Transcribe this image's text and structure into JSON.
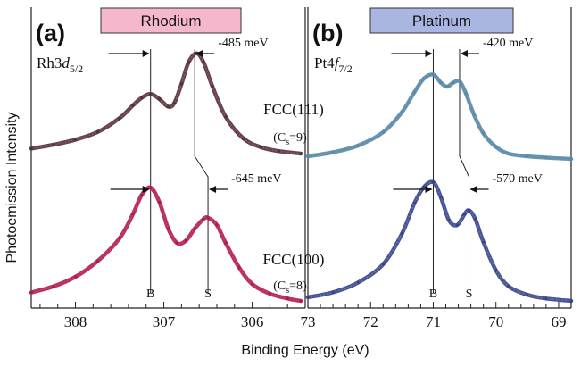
{
  "chart_data": [
    {
      "panel": "(a)",
      "element": "Rhodium",
      "banner_color": "#f4b7cc",
      "line_color": "#3a2a2e",
      "marker_color": "#cc4466",
      "core_level": {
        "main": "Rh3",
        "italic": "d",
        "sub": "5/2"
      },
      "xlim": [
        308.5,
        305.4
      ],
      "x_reversed": true,
      "xticks": [
        308,
        307,
        306
      ],
      "bulk_line_x": 307.15,
      "surface_line_x_top": 306.65,
      "surface_line_x_bottom": 306.5,
      "bulk_label": "B",
      "surface_label": "S",
      "series": [
        {
          "name": "FCC(111)",
          "coordination": "=9",
          "shift": "-485 meV",
          "color": "#4a3438",
          "peaks": [
            {
              "center": 307.15,
              "height": 0.43,
              "width": 0.16
            },
            {
              "center": 306.63,
              "height": 0.77,
              "width": 0.17
            }
          ],
          "baseline_left": 0.04,
          "baseline_right": 0.0,
          "x": [
            308.5,
            308.25,
            308.0,
            307.75,
            307.5,
            307.35,
            307.25,
            307.15,
            307.05,
            306.95,
            306.88,
            306.8,
            306.72,
            306.63,
            306.55,
            306.45,
            306.3,
            306.1,
            305.9,
            305.7,
            305.45
          ],
          "y": [
            0.04,
            0.07,
            0.11,
            0.17,
            0.28,
            0.38,
            0.44,
            0.47,
            0.43,
            0.37,
            0.4,
            0.55,
            0.72,
            0.79,
            0.72,
            0.53,
            0.29,
            0.12,
            0.05,
            0.02,
            0.0
          ]
        },
        {
          "name": "FCC(100)",
          "coordination": "=8",
          "shift": "-645 meV",
          "color": "#b01a4a",
          "x": [
            308.5,
            308.25,
            308.0,
            307.75,
            307.5,
            307.35,
            307.25,
            307.15,
            307.05,
            306.95,
            306.85,
            306.75,
            306.65,
            306.55,
            306.5,
            306.4,
            306.3,
            306.15,
            306.0,
            305.8,
            305.6,
            305.45
          ],
          "y": [
            0.07,
            0.12,
            0.2,
            0.33,
            0.52,
            0.72,
            0.88,
            0.94,
            0.82,
            0.6,
            0.48,
            0.5,
            0.6,
            0.68,
            0.69,
            0.63,
            0.48,
            0.28,
            0.14,
            0.06,
            0.02,
            0.0
          ]
        }
      ]
    },
    {
      "panel": "(b)",
      "element": "Platinum",
      "banner_color": "#aab6e2",
      "line_color": "#2a3a45",
      "marker_color": "#5a8aa8",
      "core_level": {
        "main": "Pt4",
        "italic": "f",
        "sub": "7/2"
      },
      "xlim": [
        73,
        68.8
      ],
      "x_reversed": true,
      "xticks": [
        73,
        72,
        71,
        70,
        69
      ],
      "bulk_line_x": 71.0,
      "surface_line_x_top": 70.58,
      "surface_line_x_bottom": 70.43,
      "bulk_label": "B",
      "surface_label": "S",
      "series": [
        {
          "name": "FCC(111)",
          "coordination": "=9",
          "shift": "-420 meV",
          "color": "#5a8aa8",
          "x": [
            73.0,
            72.6,
            72.2,
            71.8,
            71.5,
            71.3,
            71.15,
            71.0,
            70.88,
            70.78,
            70.68,
            70.58,
            70.48,
            70.35,
            70.2,
            70.0,
            69.8,
            69.5,
            69.2,
            68.8
          ],
          "y": [
            0.02,
            0.05,
            0.1,
            0.2,
            0.35,
            0.5,
            0.6,
            0.63,
            0.57,
            0.54,
            0.57,
            0.58,
            0.49,
            0.33,
            0.19,
            0.09,
            0.04,
            0.02,
            0.01,
            0.0
          ]
        },
        {
          "name": "FCC(100)",
          "coordination": "=8",
          "shift": "-570 meV",
          "color": "#38408a",
          "x": [
            73.0,
            72.6,
            72.2,
            71.8,
            71.5,
            71.3,
            71.15,
            71.0,
            70.88,
            70.75,
            70.62,
            70.5,
            70.43,
            70.33,
            70.2,
            70.0,
            69.8,
            69.5,
            69.2,
            68.8
          ],
          "y": [
            0.03,
            0.07,
            0.15,
            0.3,
            0.55,
            0.8,
            0.93,
            0.97,
            0.85,
            0.66,
            0.62,
            0.71,
            0.74,
            0.67,
            0.48,
            0.25,
            0.12,
            0.05,
            0.02,
            0.0
          ]
        }
      ]
    }
  ],
  "ylabel": "Photoemission Intensity",
  "xlabel": "Binding Energy (eV)",
  "cs_label": "(C",
  "cs_sub": "s",
  "cs_close": ")"
}
